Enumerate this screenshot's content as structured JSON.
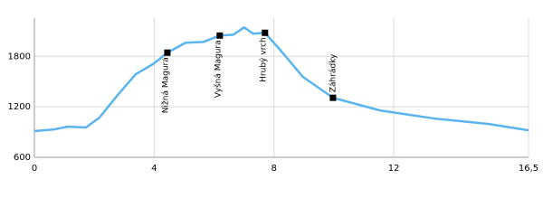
{
  "chart_data": {
    "type": "line",
    "x": [
      0,
      0.66,
      1.12,
      1.72,
      2.17,
      2.78,
      3.38,
      3.99,
      4.44,
      5.05,
      5.65,
      6.19,
      6.65,
      7.0,
      7.31,
      7.7,
      8.21,
      8.97,
      9.97,
      11.54,
      13.35,
      15.17,
      16.5
    ],
    "series": [
      {
        "color": "#5ab4f0",
        "values": [
          911,
          932,
          964,
          954,
          1071,
          1339,
          1586,
          1714,
          1843,
          1961,
          1971,
          2046,
          2057,
          2143,
          2068,
          2079,
          1875,
          1554,
          1307,
          1157,
          1061,
          996,
          921
        ]
      }
    ],
    "annotations": [
      {
        "label": "Nižná Magura",
        "x": 4.44,
        "y": 1843
      },
      {
        "label": "Vyšná Magura",
        "x": 6.19,
        "y": 2046
      },
      {
        "label": "Hrubý vrch",
        "x": 7.7,
        "y": 2079
      },
      {
        "label": "Záhrádky",
        "x": 9.97,
        "y": 1307
      }
    ],
    "xlim": [
      0,
      16.5
    ],
    "xticks": [
      0,
      4,
      8,
      12,
      {
        "value": 16.5,
        "label": "16,5"
      }
    ],
    "ylim": [
      600,
      2200
    ],
    "yticks": [
      600,
      1200,
      1800
    ],
    "grid": true
  }
}
